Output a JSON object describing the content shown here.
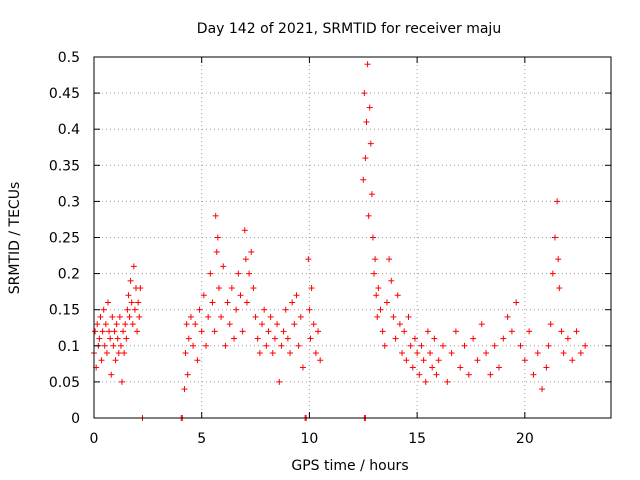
{
  "chart_data": {
    "type": "scatter",
    "title": "Day 142 of 2021, SRMTID for receiver maju",
    "xlabel": "GPS time / hours",
    "ylabel": "SRMTID / TECUs",
    "xlim": [
      0,
      24
    ],
    "ylim": [
      0,
      0.5
    ],
    "xticks": [
      0,
      5,
      10,
      15,
      20
    ],
    "xtick_labels": [
      "0",
      "5",
      "10",
      "15",
      "20"
    ],
    "yticks": [
      0,
      0.05,
      0.1,
      0.15,
      0.2,
      0.25,
      0.3,
      0.35,
      0.4,
      0.45,
      0.5
    ],
    "ytick_labels": [
      "0",
      "0.05",
      "0.1",
      "0.15",
      "0.2",
      "0.25",
      "0.3",
      "0.35",
      "0.4",
      "0.45",
      "0.5"
    ],
    "grid": true,
    "marker": "+",
    "color": "#ff0000",
    "series": [
      {
        "name": "SRMTID",
        "points": [
          [
            0.0,
            0.09
          ],
          [
            0.05,
            0.12
          ],
          [
            0.1,
            0.07
          ],
          [
            0.15,
            0.13
          ],
          [
            0.2,
            0.1
          ],
          [
            0.25,
            0.11
          ],
          [
            0.3,
            0.14
          ],
          [
            0.35,
            0.08
          ],
          [
            0.4,
            0.12
          ],
          [
            0.45,
            0.15
          ],
          [
            0.5,
            0.1
          ],
          [
            0.55,
            0.13
          ],
          [
            0.6,
            0.09
          ],
          [
            0.65,
            0.16
          ],
          [
            0.7,
            0.12
          ],
          [
            0.75,
            0.11
          ],
          [
            0.8,
            0.06
          ],
          [
            0.85,
            0.14
          ],
          [
            0.9,
            0.1
          ],
          [
            0.95,
            0.12
          ],
          [
            1.0,
            0.08
          ],
          [
            1.05,
            0.13
          ],
          [
            1.1,
            0.11
          ],
          [
            1.15,
            0.09
          ],
          [
            1.2,
            0.14
          ],
          [
            1.25,
            0.1
          ],
          [
            1.3,
            0.05
          ],
          [
            1.35,
            0.12
          ],
          [
            1.4,
            0.09
          ],
          [
            1.45,
            0.13
          ],
          [
            1.5,
            0.11
          ],
          [
            1.55,
            0.15
          ],
          [
            1.6,
            0.17
          ],
          [
            1.65,
            0.14
          ],
          [
            1.7,
            0.19
          ],
          [
            1.75,
            0.16
          ],
          [
            1.8,
            0.13
          ],
          [
            1.85,
            0.21
          ],
          [
            1.9,
            0.15
          ],
          [
            1.95,
            0.18
          ],
          [
            2.0,
            0.12
          ],
          [
            2.05,
            0.16
          ],
          [
            2.1,
            0.14
          ],
          [
            2.15,
            0.18
          ],
          [
            2.25,
            0.0
          ],
          [
            4.05,
            0.0
          ],
          [
            4.1,
            0.0
          ],
          [
            9.8,
            0.0
          ],
          [
            9.85,
            0.0
          ],
          [
            12.55,
            0.0
          ],
          [
            12.6,
            0.0
          ],
          [
            4.2,
            0.04
          ],
          [
            4.25,
            0.09
          ],
          [
            4.3,
            0.13
          ],
          [
            4.35,
            0.06
          ],
          [
            4.4,
            0.11
          ],
          [
            4.5,
            0.14
          ],
          [
            4.6,
            0.1
          ],
          [
            4.7,
            0.13
          ],
          [
            4.8,
            0.08
          ],
          [
            4.9,
            0.15
          ],
          [
            5.0,
            0.12
          ],
          [
            5.1,
            0.17
          ],
          [
            5.2,
            0.1
          ],
          [
            5.3,
            0.14
          ],
          [
            5.4,
            0.2
          ],
          [
            5.5,
            0.16
          ],
          [
            5.6,
            0.12
          ],
          [
            5.65,
            0.28
          ],
          [
            5.7,
            0.23
          ],
          [
            5.75,
            0.25
          ],
          [
            5.8,
            0.18
          ],
          [
            5.9,
            0.14
          ],
          [
            6.0,
            0.21
          ],
          [
            6.1,
            0.1
          ],
          [
            6.2,
            0.16
          ],
          [
            6.3,
            0.13
          ],
          [
            6.4,
            0.18
          ],
          [
            6.5,
            0.11
          ],
          [
            6.6,
            0.15
          ],
          [
            6.7,
            0.2
          ],
          [
            6.8,
            0.17
          ],
          [
            6.9,
            0.12
          ],
          [
            7.0,
            0.26
          ],
          [
            7.05,
            0.22
          ],
          [
            7.1,
            0.16
          ],
          [
            7.2,
            0.2
          ],
          [
            7.3,
            0.23
          ],
          [
            7.4,
            0.18
          ],
          [
            7.5,
            0.14
          ],
          [
            7.6,
            0.11
          ],
          [
            7.7,
            0.09
          ],
          [
            7.8,
            0.13
          ],
          [
            7.9,
            0.15
          ],
          [
            8.0,
            0.1
          ],
          [
            8.1,
            0.12
          ],
          [
            8.2,
            0.14
          ],
          [
            8.3,
            0.09
          ],
          [
            8.4,
            0.11
          ],
          [
            8.5,
            0.13
          ],
          [
            8.6,
            0.05
          ],
          [
            8.7,
            0.1
          ],
          [
            8.8,
            0.12
          ],
          [
            8.9,
            0.15
          ],
          [
            9.0,
            0.11
          ],
          [
            9.1,
            0.09
          ],
          [
            9.2,
            0.16
          ],
          [
            9.3,
            0.13
          ],
          [
            9.4,
            0.17
          ],
          [
            9.5,
            0.1
          ],
          [
            9.6,
            0.14
          ],
          [
            9.7,
            0.07
          ],
          [
            9.95,
            0.22
          ],
          [
            10.0,
            0.15
          ],
          [
            10.05,
            0.11
          ],
          [
            10.1,
            0.18
          ],
          [
            10.2,
            0.13
          ],
          [
            10.3,
            0.09
          ],
          [
            10.4,
            0.12
          ],
          [
            10.5,
            0.08
          ],
          [
            12.5,
            0.33
          ],
          [
            12.55,
            0.45
          ],
          [
            12.6,
            0.36
          ],
          [
            12.65,
            0.41
          ],
          [
            12.7,
            0.49
          ],
          [
            12.75,
            0.28
          ],
          [
            12.8,
            0.43
          ],
          [
            12.85,
            0.38
          ],
          [
            12.9,
            0.31
          ],
          [
            12.95,
            0.25
          ],
          [
            13.0,
            0.2
          ],
          [
            13.05,
            0.22
          ],
          [
            13.1,
            0.17
          ],
          [
            13.15,
            0.14
          ],
          [
            13.2,
            0.18
          ],
          [
            13.3,
            0.15
          ],
          [
            13.4,
            0.12
          ],
          [
            13.5,
            0.1
          ],
          [
            13.6,
            0.16
          ],
          [
            13.7,
            0.22
          ],
          [
            13.8,
            0.19
          ],
          [
            13.9,
            0.14
          ],
          [
            14.0,
            0.11
          ],
          [
            14.1,
            0.17
          ],
          [
            14.2,
            0.13
          ],
          [
            14.3,
            0.09
          ],
          [
            14.4,
            0.12
          ],
          [
            14.5,
            0.08
          ],
          [
            14.6,
            0.14
          ],
          [
            14.7,
            0.1
          ],
          [
            14.8,
            0.07
          ],
          [
            14.9,
            0.11
          ],
          [
            15.0,
            0.09
          ],
          [
            15.1,
            0.06
          ],
          [
            15.2,
            0.1
          ],
          [
            15.3,
            0.08
          ],
          [
            15.4,
            0.05
          ],
          [
            15.5,
            0.12
          ],
          [
            15.6,
            0.09
          ],
          [
            15.7,
            0.07
          ],
          [
            15.8,
            0.11
          ],
          [
            15.9,
            0.06
          ],
          [
            16.0,
            0.08
          ],
          [
            16.2,
            0.1
          ],
          [
            16.4,
            0.05
          ],
          [
            16.6,
            0.09
          ],
          [
            16.8,
            0.12
          ],
          [
            17.0,
            0.07
          ],
          [
            17.2,
            0.1
          ],
          [
            17.4,
            0.06
          ],
          [
            17.6,
            0.11
          ],
          [
            17.8,
            0.08
          ],
          [
            18.0,
            0.13
          ],
          [
            18.2,
            0.09
          ],
          [
            18.4,
            0.06
          ],
          [
            18.6,
            0.1
          ],
          [
            18.8,
            0.07
          ],
          [
            19.0,
            0.11
          ],
          [
            19.2,
            0.14
          ],
          [
            19.4,
            0.12
          ],
          [
            19.6,
            0.16
          ],
          [
            19.8,
            0.1
          ],
          [
            20.0,
            0.08
          ],
          [
            20.2,
            0.12
          ],
          [
            20.4,
            0.06
          ],
          [
            20.6,
            0.09
          ],
          [
            20.8,
            0.04
          ],
          [
            21.0,
            0.07
          ],
          [
            21.1,
            0.1
          ],
          [
            21.2,
            0.13
          ],
          [
            21.3,
            0.2
          ],
          [
            21.4,
            0.25
          ],
          [
            21.5,
            0.3
          ],
          [
            21.55,
            0.22
          ],
          [
            21.6,
            0.18
          ],
          [
            21.7,
            0.12
          ],
          [
            21.8,
            0.09
          ],
          [
            22.0,
            0.11
          ],
          [
            22.2,
            0.08
          ],
          [
            22.4,
            0.12
          ],
          [
            22.6,
            0.09
          ],
          [
            22.8,
            0.1
          ]
        ]
      }
    ]
  }
}
